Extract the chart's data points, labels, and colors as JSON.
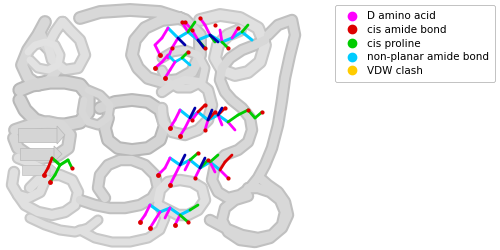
{
  "legend_entries": [
    {
      "label": "D amino acid",
      "color": "#ff00ff"
    },
    {
      "label": "cis amide bond",
      "color": "#dd0000"
    },
    {
      "label": "cis proline",
      "color": "#00cc00"
    },
    {
      "label": "non-planar amide bond",
      "color": "#00ccff"
    },
    {
      "label": "VDW clash",
      "color": "#ffcc00"
    }
  ],
  "legend_fontsize": 7.5,
  "background_color": "#ffffff",
  "fig_width": 5.0,
  "fig_height": 2.5,
  "dpi": 100,
  "legend_box_color": "#ffffff",
  "legend_edge_color": "#aaaaaa",
  "legend_alpha": 1.0,
  "protein_bg": "#f0f0f0",
  "ribbon_color": "#d8d8d8",
  "ribbon_edge": "#b0b0b0"
}
